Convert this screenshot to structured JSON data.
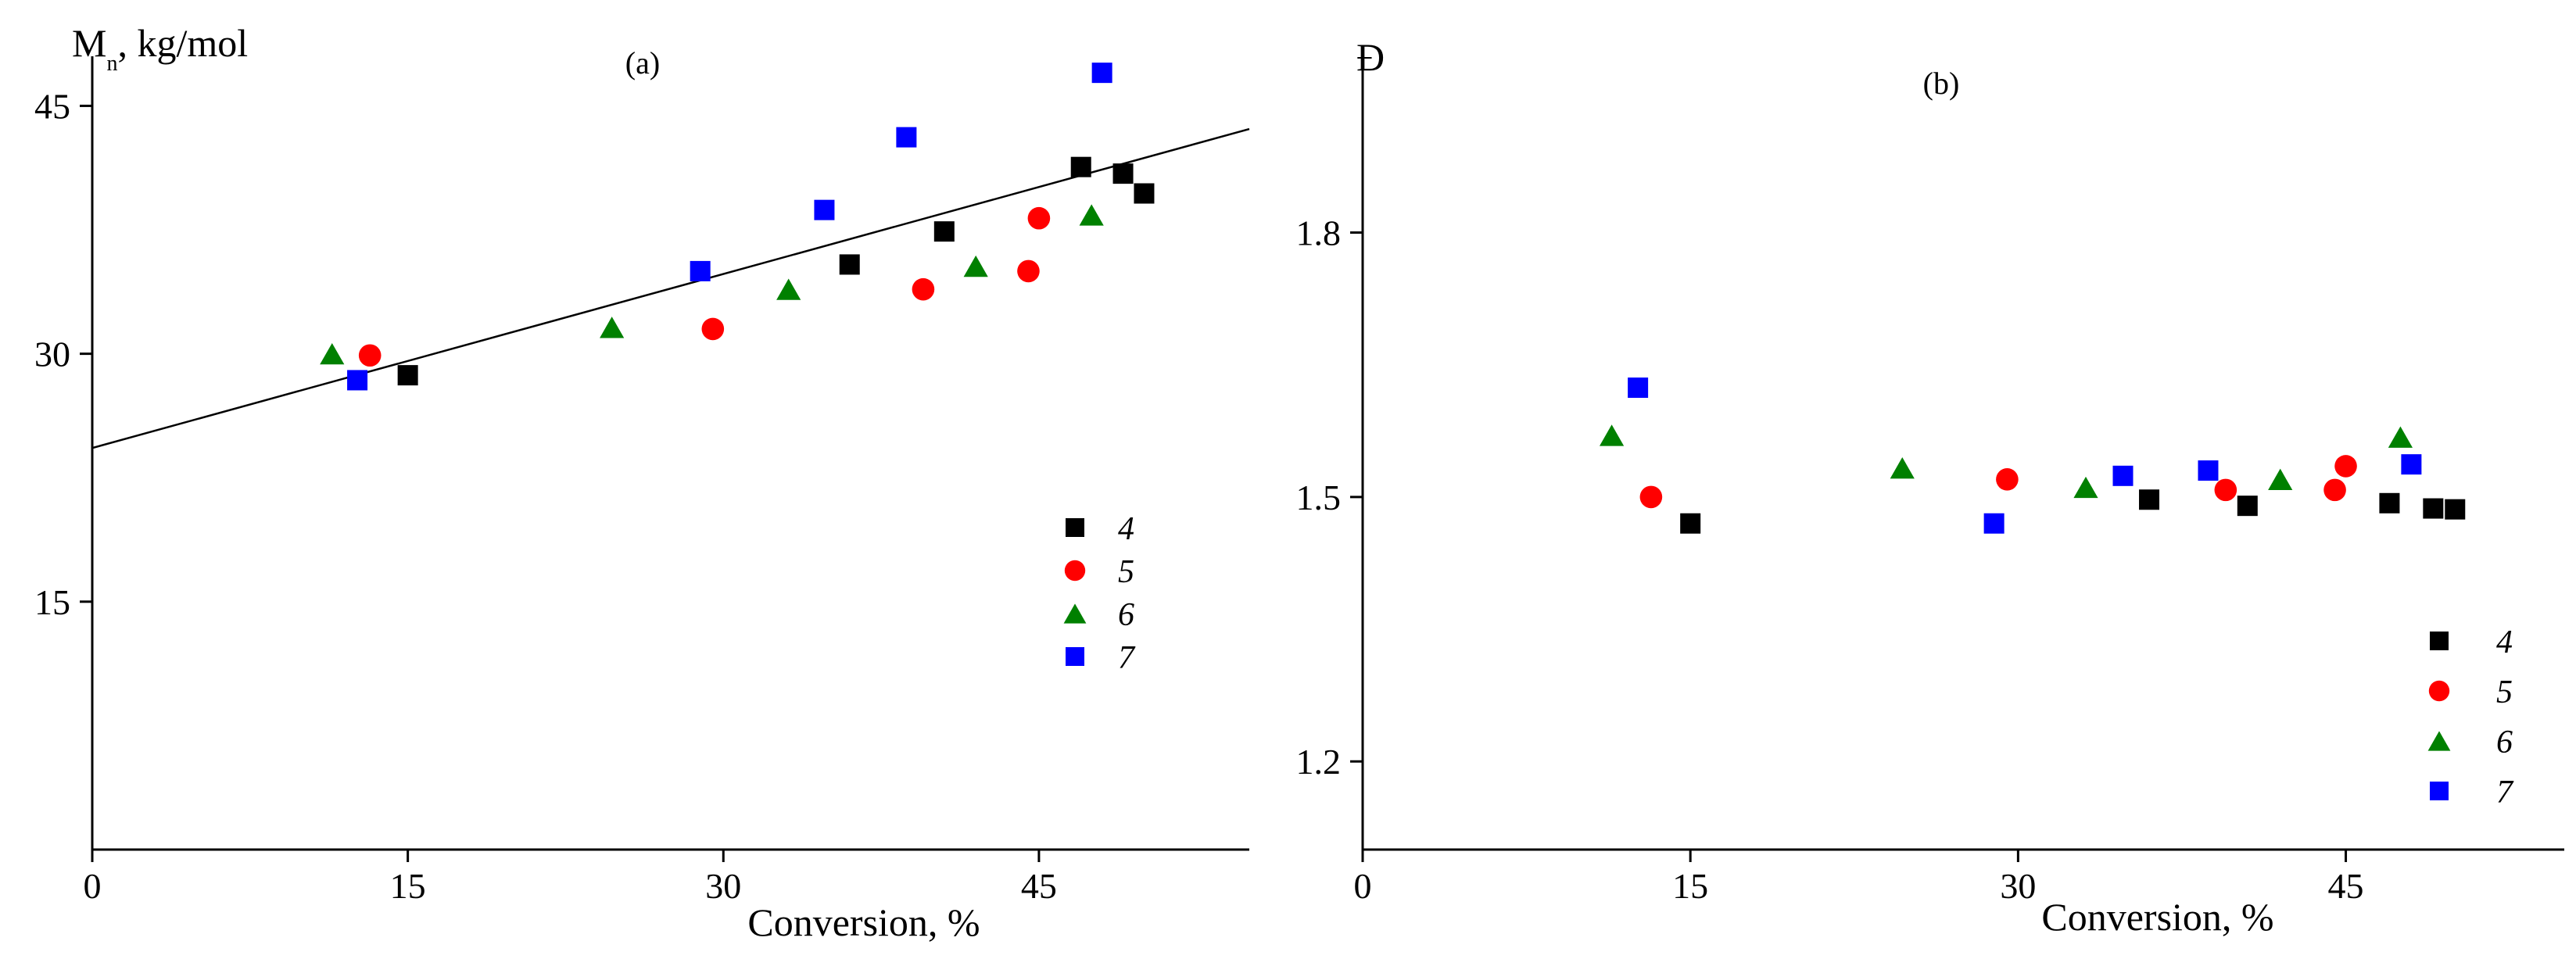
{
  "chart_data": [
    {
      "type": "scatter",
      "panel_label": "(a)",
      "ylabel_main": "M",
      "ylabel_sub": "n",
      "ylabel_rest": ", kg/mol",
      "xlabel": "Conversion, %",
      "xlim": [
        0,
        55
      ],
      "ylim": [
        0,
        48
      ],
      "xticks": [
        0,
        15,
        30,
        45
      ],
      "yticks": [
        15,
        30,
        45
      ],
      "grid": false,
      "legend_position": "middle-right",
      "fit_line": {
        "x1": 0,
        "y1": 24.3,
        "x2": 55,
        "y2": 43.6
      },
      "series": [
        {
          "name": "4",
          "marker": "square",
          "color": "#000000",
          "points": [
            [
              15,
              28.7
            ],
            [
              36,
              35.4
            ],
            [
              40.5,
              37.4
            ],
            [
              47,
              41.3
            ],
            [
              49,
              40.9
            ],
            [
              50,
              39.7
            ]
          ]
        },
        {
          "name": "5",
          "marker": "circle",
          "color": "#ff0000",
          "points": [
            [
              13.2,
              29.9
            ],
            [
              29.5,
              31.5
            ],
            [
              39.5,
              33.9
            ],
            [
              44.5,
              35
            ],
            [
              45,
              38.2
            ]
          ]
        },
        {
          "name": "6",
          "marker": "triangle",
          "color": "#008000",
          "points": [
            [
              11.4,
              30
            ],
            [
              24.7,
              31.6
            ],
            [
              33.1,
              33.9
            ],
            [
              42,
              35.3
            ],
            [
              47.5,
              38.4
            ]
          ]
        },
        {
          "name": "7",
          "marker": "square",
          "color": "#0000ff",
          "points": [
            [
              12.6,
              28.4
            ],
            [
              28.9,
              35
            ],
            [
              34.8,
              38.7
            ],
            [
              38.7,
              43.1
            ],
            [
              48,
              47
            ]
          ]
        }
      ]
    },
    {
      "type": "scatter",
      "panel_label": "(b)",
      "ylabel_main": "Đ",
      "xlabel": "Conversion, %",
      "xlim": [
        0,
        55
      ],
      "ylim": [
        1.1,
        2.0
      ],
      "xticks": [
        0,
        15,
        30,
        45
      ],
      "yticks": [
        1.2,
        1.5,
        1.8
      ],
      "grid": false,
      "legend_position": "bottom-right",
      "series": [
        {
          "name": "4",
          "marker": "square",
          "color": "#000000",
          "points": [
            [
              15,
              1.47
            ],
            [
              36,
              1.497
            ],
            [
              40.5,
              1.49
            ],
            [
              47,
              1.493
            ],
            [
              49,
              1.487
            ],
            [
              50,
              1.486
            ]
          ]
        },
        {
          "name": "5",
          "marker": "circle",
          "color": "#ff0000",
          "points": [
            [
              13.2,
              1.5
            ],
            [
              29.5,
              1.52
            ],
            [
              39.5,
              1.508
            ],
            [
              44.5,
              1.508
            ],
            [
              45,
              1.535
            ]
          ]
        },
        {
          "name": "6",
          "marker": "triangle",
          "color": "#008000",
          "points": [
            [
              11.4,
              1.57
            ],
            [
              24.7,
              1.533
            ],
            [
              33.1,
              1.511
            ],
            [
              42,
              1.52
            ],
            [
              47.5,
              1.568
            ]
          ]
        },
        {
          "name": "7",
          "marker": "square",
          "color": "#0000ff",
          "points": [
            [
              12.6,
              1.624
            ],
            [
              28.9,
              1.47
            ],
            [
              34.8,
              1.524
            ],
            [
              38.7,
              1.53
            ],
            [
              48,
              1.537
            ]
          ]
        }
      ]
    }
  ]
}
